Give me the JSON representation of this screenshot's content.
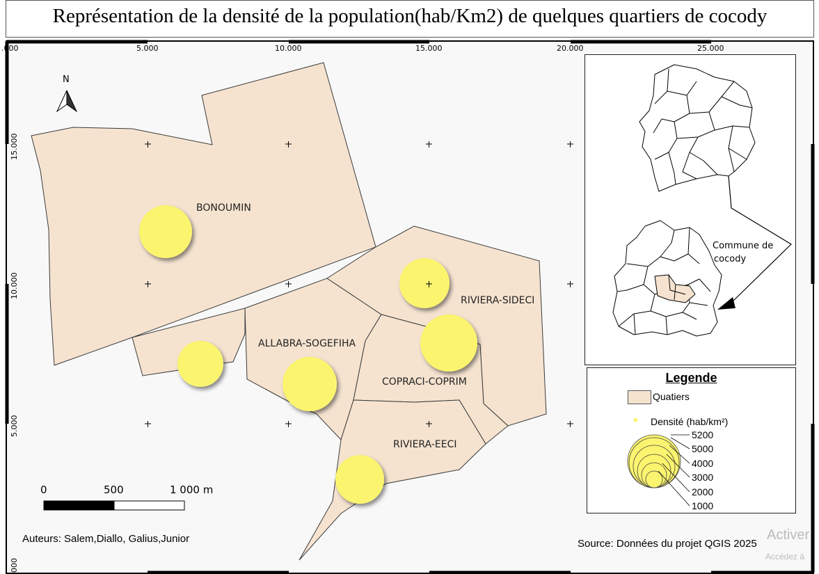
{
  "title": "Représentation de la densité de la population(hab/Km2) de quelques quartiers de cocody",
  "grid_labels_top": [
    "5.000",
    "10.000",
    "15.000",
    "20.000",
    "25.000"
  ],
  "grid_label_top_cut": ".000",
  "grid_labels_left": [
    "15.000",
    "10.000",
    "5.000"
  ],
  "grid_label_left_cut": "000",
  "north_label": "N",
  "districts": [
    "BONOUMIN",
    "RIVIERA-SIDECI",
    "ALLABRA-SOGEFIHA",
    "COPRACI-COPRIM",
    "RIVIERA-EECI"
  ],
  "inset": {
    "label_line1": "Commune de",
    "label_line2": "cocody"
  },
  "scale_bar": {
    "labels": [
      "0",
      "500",
      "1 000 m"
    ]
  },
  "legend": {
    "title": "Legende",
    "quartiers_label": "Quatiers",
    "density_label": "Densité (hab/km²)",
    "size_values": [
      "5200",
      "5000",
      "4000",
      "3000",
      "2000",
      "1000"
    ]
  },
  "authors": "Auteurs: Salem,Diallo, Galius,Junior",
  "source": "Source: Données du projet QGIS 2025",
  "watermark": {
    "line1": "Activer",
    "line2": "Accédez à"
  },
  "colors": {
    "district_fill": "#f5e3d0",
    "circle_fill": "#fbf46e",
    "frame": "#000000"
  }
}
